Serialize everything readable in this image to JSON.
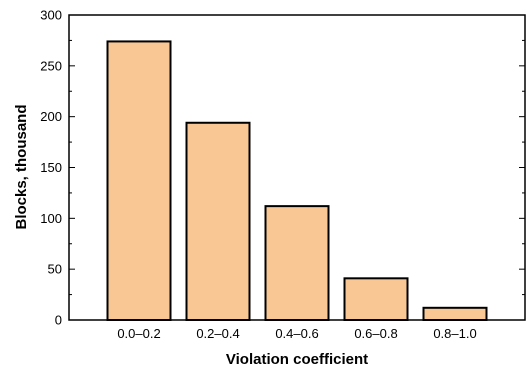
{
  "chart_data": {
    "type": "bar",
    "title": "",
    "xlabel": "Violation coefficient",
    "ylabel": "Blocks, thousand",
    "categories": [
      "0.0–0.2",
      "0.2–0.4",
      "0.4–0.6",
      "0.6–0.8",
      "0.8–1.0"
    ],
    "values": [
      274,
      194,
      112,
      41,
      12
    ],
    "ylim": [
      0,
      300
    ],
    "yticks": [
      0,
      50,
      100,
      150,
      200,
      250,
      300
    ],
    "y_minor_step": 25,
    "grid": false,
    "legend": "none",
    "bar_color": "#f9c794",
    "bar_edge_color": "#000000"
  }
}
